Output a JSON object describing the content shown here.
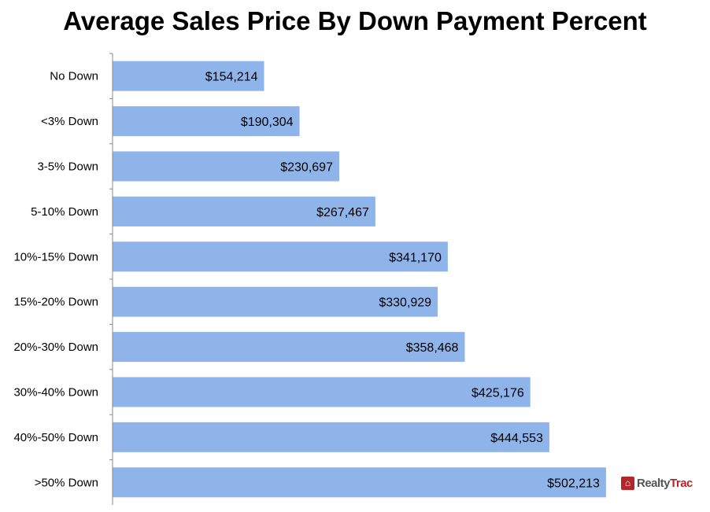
{
  "chart_data": {
    "type": "bar",
    "orientation": "horizontal",
    "title": "Average Sales Price By Down Payment Percent",
    "categories": [
      "No Down",
      "<3% Down",
      "3-5% Down",
      "5-10% Down",
      "10%-15% Down",
      "15%-20% Down",
      "20%-30% Down",
      "30%-40% Down",
      "40%-50% Down",
      ">50% Down"
    ],
    "values": [
      154214,
      190304,
      230697,
      267467,
      341170,
      330929,
      358468,
      425176,
      444553,
      502213
    ],
    "data_labels": [
      "$154,214",
      "$190,304",
      "$230,697",
      "$267,467",
      "$341,170",
      "$330,929",
      "$358,468",
      "$425,176",
      "$444,553",
      "$502,213"
    ],
    "xlim": [
      0,
      580000
    ],
    "grid": false,
    "bar_color": "#8fb4ea"
  },
  "logo": {
    "text_a": "Realty",
    "text_b": "Trac"
  }
}
